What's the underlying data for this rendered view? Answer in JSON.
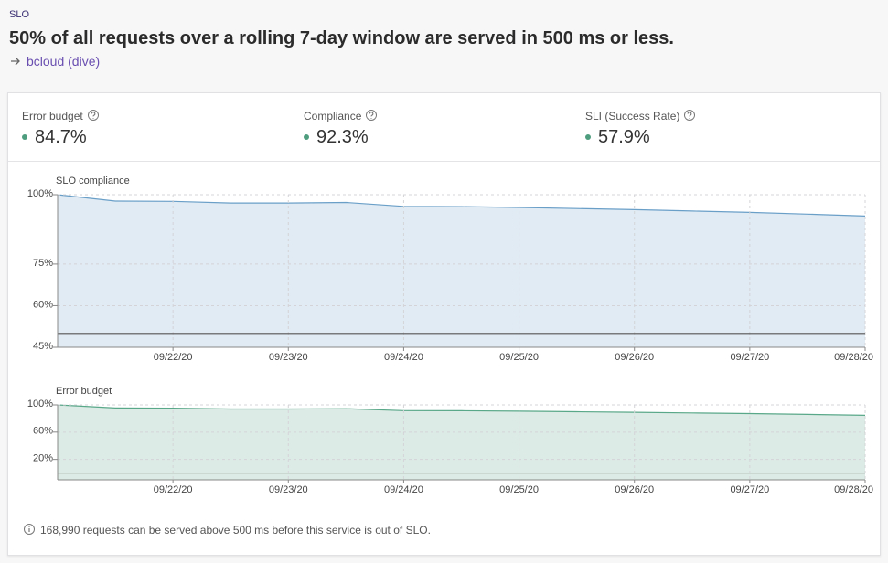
{
  "header": {
    "section": "SLO",
    "title": "50% of all requests over a rolling 7-day window are served in 500 ms or less.",
    "link": "bcloud (dive)"
  },
  "stats": [
    {
      "label": "Error budget",
      "value": "84.7%"
    },
    {
      "label": "Compliance",
      "value": "92.3%"
    },
    {
      "label": "SLI (Success Rate)",
      "value": "57.9%"
    }
  ],
  "chart_data": [
    {
      "type": "area",
      "title": "SLO compliance",
      "xlim": [
        "09/21/20",
        "09/28/20"
      ],
      "xticks": [
        "09/22/20",
        "09/23/20",
        "09/24/20",
        "09/25/20",
        "09/26/20",
        "09/27/20",
        "09/28/20"
      ],
      "ylim": [
        45,
        100
      ],
      "yticks": [
        {
          "value": 100,
          "label": "100%"
        },
        {
          "value": 75,
          "label": "75%"
        },
        {
          "value": 60,
          "label": "60%"
        },
        {
          "value": 45,
          "label": "45%"
        }
      ],
      "threshold": 50,
      "grid": true,
      "series": [
        {
          "name": "Compliance",
          "color": "#6a9fc8",
          "fill": "#e1ebf3",
          "values": [
            100,
            97.7,
            97.6,
            97.0,
            97.0,
            97.2,
            95.8,
            95.7,
            95.4,
            95.0,
            94.6,
            94.1,
            93.6,
            93.0,
            92.3
          ]
        }
      ]
    },
    {
      "type": "area",
      "title": "Error budget",
      "xlim": [
        "09/21/20",
        "09/28/20"
      ],
      "xticks": [
        "09/22/20",
        "09/23/20",
        "09/24/20",
        "09/25/20",
        "09/26/20",
        "09/27/20",
        "09/28/20"
      ],
      "ylim": [
        -10,
        100
      ],
      "yticks": [
        {
          "value": 100,
          "label": "100%"
        },
        {
          "value": 60,
          "label": "60%"
        },
        {
          "value": 20,
          "label": "20%"
        }
      ],
      "threshold": 0,
      "grid": true,
      "series": [
        {
          "name": "Error budget",
          "color": "#5aa88a",
          "fill": "#dcebe5",
          "values": [
            100,
            95.4,
            95.2,
            94.0,
            94.0,
            94.4,
            91.6,
            91.4,
            90.8,
            90.0,
            89.2,
            88.2,
            87.2,
            86.0,
            84.7
          ]
        }
      ]
    }
  ],
  "footer": "168,990 requests can be served above 500 ms before this service is out of SLO."
}
